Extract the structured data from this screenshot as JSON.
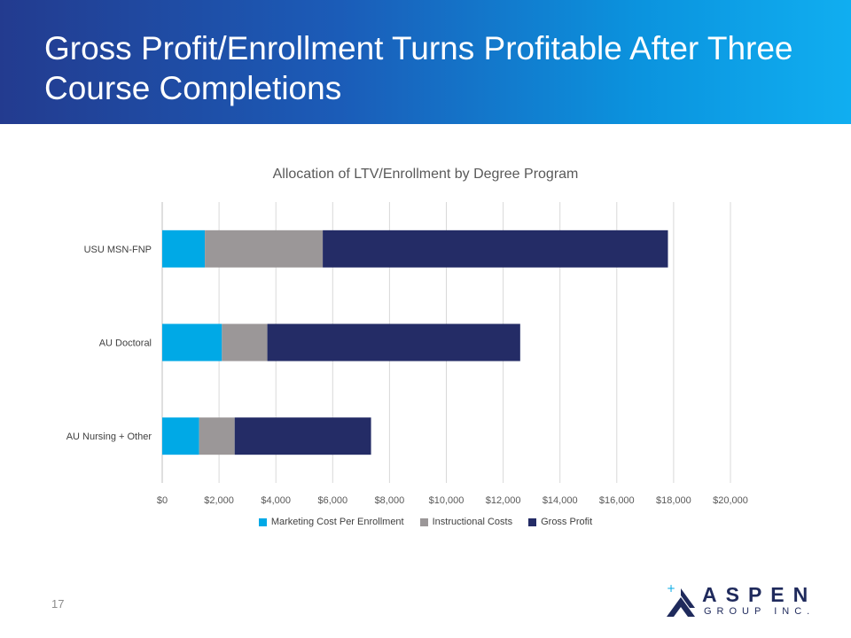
{
  "slide": {
    "title": "Gross Profit/Enrollment Turns Profitable After Three Course Completions",
    "page_number": "17"
  },
  "logo": {
    "name": "ASPEN",
    "sub": "GROUP INC."
  },
  "colors": {
    "marketing": "#00a9e6",
    "instructional": "#9b9798",
    "gross_profit": "#242c66"
  },
  "chart_data": {
    "type": "bar",
    "orientation": "horizontal",
    "stacked": true,
    "title": "Allocation of LTV/Enrollment by Degree Program",
    "categories": [
      "USU MSN-FNP",
      "AU Doctoral",
      "AU Nursing + Other"
    ],
    "series": [
      {
        "name": "Marketing Cost Per Enrollment",
        "values": [
          1500,
          2100,
          1300
        ]
      },
      {
        "name": "Instructional Costs",
        "values": [
          4150,
          1600,
          1250
        ]
      },
      {
        "name": "Gross Profit",
        "values": [
          12150,
          8900,
          4800
        ]
      }
    ],
    "xlim": [
      0,
      20000
    ],
    "x_ticks": [
      "$0",
      "$2,000",
      "$4,000",
      "$6,000",
      "$8,000",
      "$10,000",
      "$12,000",
      "$14,000",
      "$16,000",
      "$18,000",
      "$20,000"
    ],
    "grid": true,
    "legend": "bottom"
  }
}
